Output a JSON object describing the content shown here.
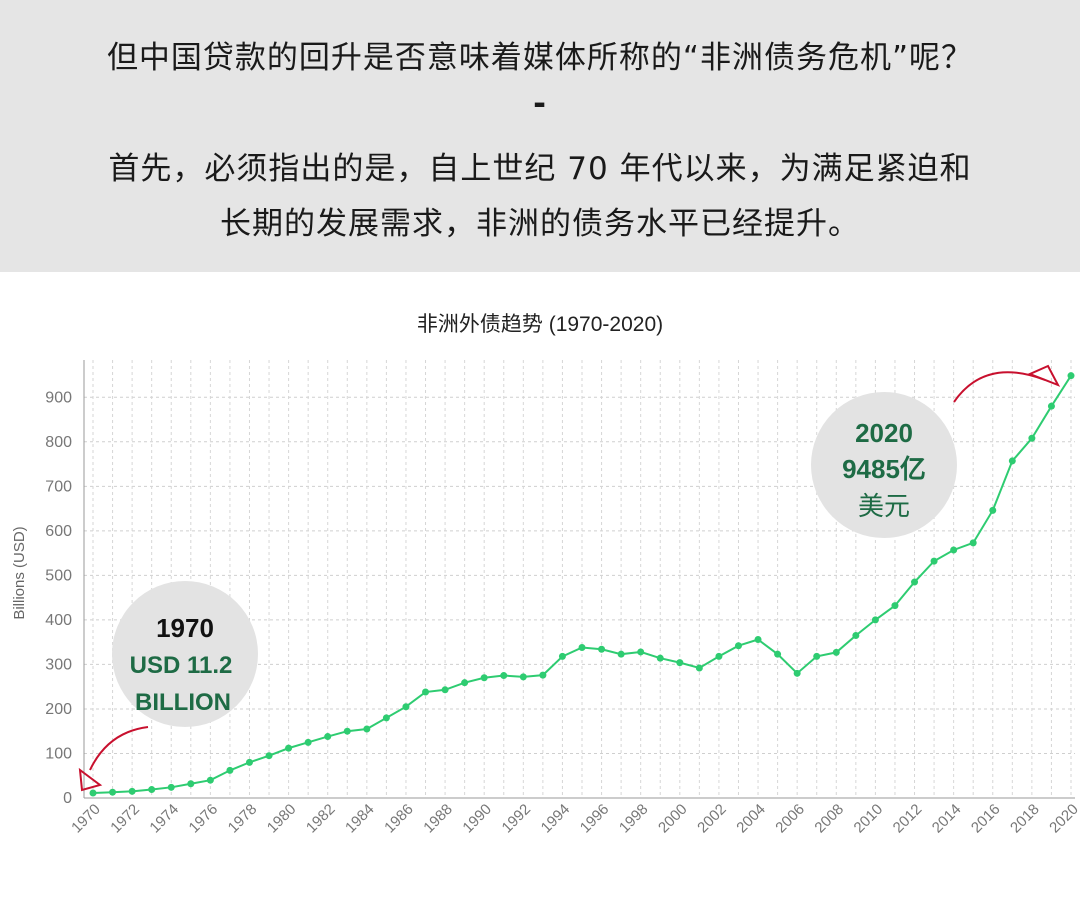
{
  "header": {
    "question": "但中国贷款的回升是否意味着媒体所称的“非洲债务危机”呢？",
    "separator": "-",
    "answer_line1": "首先，必须指出的是，自上世纪 70 年代以来，为满足紧迫和",
    "answer_line2": "长期的发展需求，非洲的债务水平已经提升。"
  },
  "colors": {
    "banner_bg": "#e5e5e5",
    "line": "#2ecc71",
    "dark_green": "#1e6b45",
    "arrow_red": "#c8102e",
    "bubble_bg": "#e3e3e3"
  },
  "annotations": {
    "start": {
      "year": "1970",
      "amount": "USD 11.2",
      "unit": "BILLION"
    },
    "end": {
      "year": "2020",
      "amount": "9485亿",
      "unit": "美元"
    }
  },
  "chart_data": {
    "type": "line",
    "title": "非洲外债趋势 (1970-2020)",
    "xlabel": "",
    "ylabel": "Billions (USD)",
    "ylim": [
      0,
      950
    ],
    "yticks": [
      0,
      100,
      200,
      300,
      400,
      500,
      600,
      700,
      800,
      900
    ],
    "xtick_labels": [
      "1970",
      "1972",
      "1974",
      "1976",
      "1978",
      "1980",
      "1982",
      "1984",
      "1986",
      "1988",
      "1990",
      "1992",
      "1994",
      "1996",
      "1998",
      "2000",
      "2002",
      "2004",
      "2006",
      "2008",
      "2010",
      "2012",
      "2014",
      "2016",
      "2018",
      "2020"
    ],
    "grid": true,
    "x": [
      1970,
      1971,
      1972,
      1973,
      1974,
      1975,
      1976,
      1977,
      1978,
      1979,
      1980,
      1981,
      1982,
      1983,
      1984,
      1985,
      1986,
      1987,
      1988,
      1989,
      1990,
      1991,
      1992,
      1993,
      1994,
      1995,
      1996,
      1997,
      1998,
      1999,
      2000,
      2001,
      2002,
      2003,
      2004,
      2005,
      2006,
      2007,
      2008,
      2009,
      2010,
      2011,
      2012,
      2013,
      2014,
      2015,
      2016,
      2017,
      2018,
      2019,
      2020
    ],
    "series": [
      {
        "values": [
          11.2,
          13,
          15,
          19,
          24,
          32,
          40,
          62,
          80,
          95,
          112,
          125,
          138,
          150,
          155,
          180,
          205,
          238,
          243,
          259,
          270,
          275,
          272,
          276,
          318,
          338,
          334,
          323,
          328,
          314,
          304,
          292,
          318,
          342,
          356,
          323,
          280,
          318,
          327,
          365,
          400,
          432,
          485,
          532,
          557,
          573,
          646,
          757,
          808,
          880,
          948.5
        ]
      }
    ]
  }
}
